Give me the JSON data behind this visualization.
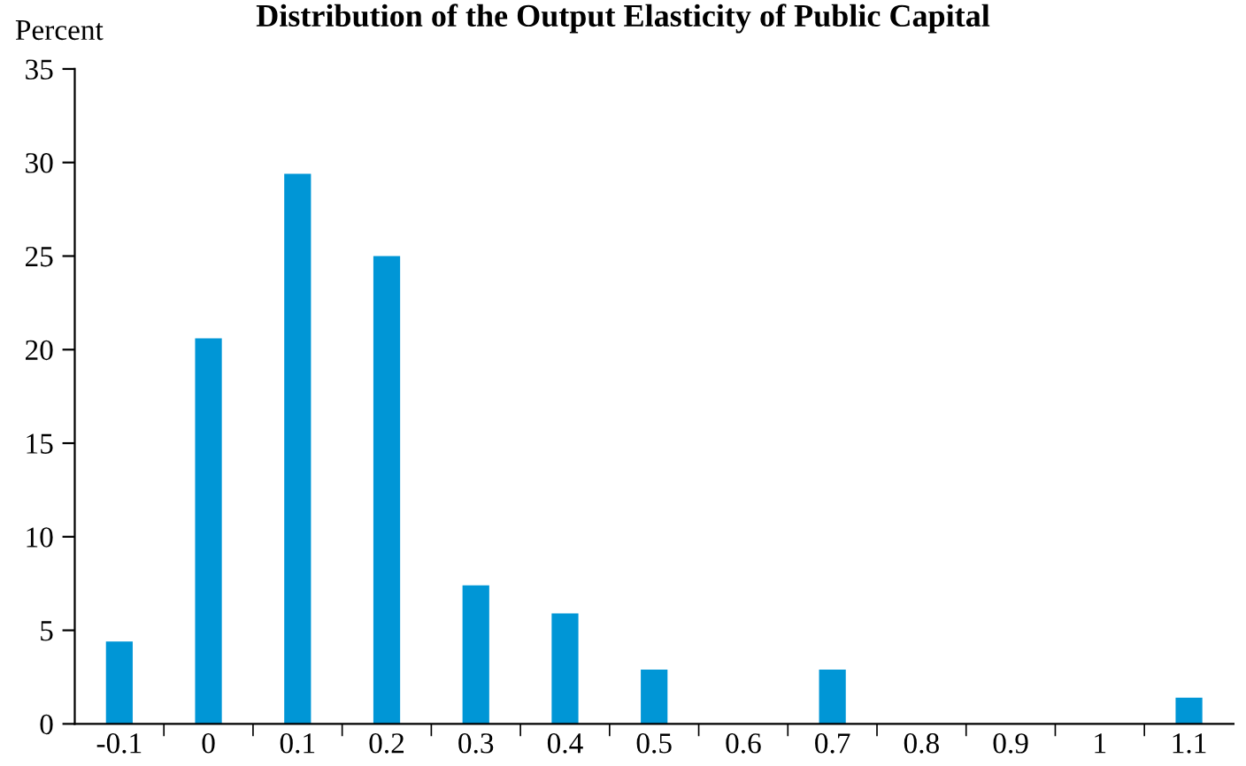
{
  "chart_data": {
    "type": "bar",
    "title": "Distribution of the Output Elasticity of Public Capital",
    "ylabel": "Percent",
    "categories": [
      "-0.1",
      "0",
      "0.1",
      "0.2",
      "0.3",
      "0.4",
      "0.5",
      "0.6",
      "0.7",
      "0.8",
      "0.9",
      "1",
      "1.1"
    ],
    "values": [
      4.4,
      20.6,
      29.4,
      25,
      7.4,
      5.9,
      2.9,
      0,
      2.9,
      0,
      0,
      0,
      1.4
    ],
    "color": "#0096d6",
    "ylim": [
      0,
      35
    ],
    "yticks": [
      0,
      5,
      10,
      15,
      20,
      25,
      30,
      35
    ],
    "grid": false
  }
}
